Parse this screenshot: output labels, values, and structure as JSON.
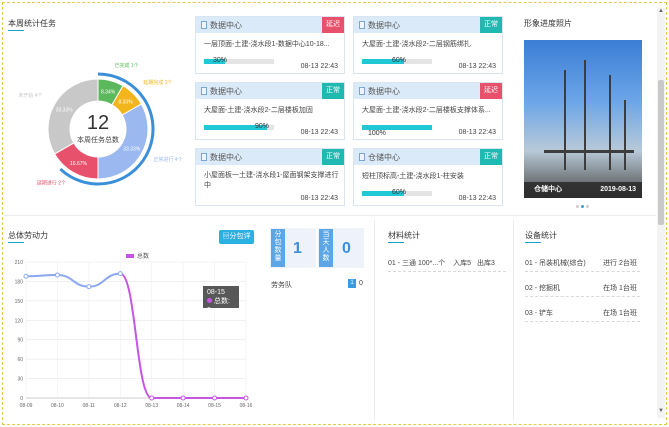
{
  "weekly": {
    "title": "本周统计任务",
    "total": "12",
    "total_label": "本周任务总数",
    "slices": [
      {
        "label": "已完成",
        "pct": "8.34%",
        "value": 8.34,
        "color": "#5cb85c"
      },
      {
        "label": "延期完成",
        "pct": "8.33%",
        "value": 8.33,
        "color": "#f3b51c"
      },
      {
        "label": "正常进行",
        "pct": "33.33%",
        "value": 33.33,
        "color": "#9bb8f0"
      },
      {
        "label": "延期进行",
        "pct": "16.67%",
        "value": 16.67,
        "color": "#e8516c"
      },
      {
        "label": "未开始",
        "pct": "33.33%",
        "value": 33.33,
        "color": "#c8c8c8"
      }
    ],
    "outer_labels": [
      "已完成 1个",
      "延期完成 1个",
      "正常进行 4个",
      "延期进行 2个",
      "未开始 4个"
    ],
    "inner_pcts": [
      "8.34%",
      "8.33%",
      "33.33%",
      "16.67%",
      "33.33%"
    ]
  },
  "cards": [
    {
      "title": "数据中心",
      "status": "延迟",
      "state": "late",
      "task": "一层顶面-土建-浇水段1-数据中心10-18...",
      "progress_label": "30%",
      "progress": 0.3,
      "date": "08-13 22:43"
    },
    {
      "title": "数据中心",
      "status": "正常",
      "state": "ok",
      "task": "大屋面-土建-浇水段2-二层钢筋绑扎",
      "progress_label": "60%",
      "progress": 0.6,
      "date": "08-13 22:43"
    },
    {
      "title": "数据中心",
      "status": "正常",
      "state": "ok",
      "task": "大屋面-土建-浇水段2-二层楼板加固",
      "progress_label": "90%",
      "progress": 0.9,
      "date": "08-13 22:43"
    },
    {
      "title": "数据中心",
      "status": "延迟",
      "state": "late",
      "task": "大屋面-土建-浇水段2-二层楼板支撑体系...",
      "progress_label": "100%",
      "progress": 1.0,
      "date": "08-13 22:43"
    },
    {
      "title": "数据中心",
      "status": "正常",
      "state": "ok",
      "task": "小屋面板一土建-浇水段1-屋面钢架支撑进行中",
      "progress_label": "",
      "progress": 0.0,
      "date": "08-13 22:43"
    },
    {
      "title": "仓储中心",
      "status": "正常",
      "state": "ok",
      "task": "短柱顶标高-土建-浇水段1-柱安装",
      "progress_label": "60%",
      "progress": 0.6,
      "date": "08-13 22:43"
    }
  ],
  "photo": {
    "title": "形象进度照片",
    "caption_left": "仓储中心",
    "caption_right": "2019-08-13"
  },
  "labor": {
    "title": "总体劳动力",
    "detail_btn": "分包详",
    "legend": "总数",
    "tooltip_date": "08-15",
    "tooltip_value": "总数: 0"
  },
  "chart_data": {
    "type": "line",
    "x": [
      "08-09",
      "08-10",
      "08-11",
      "08-12",
      "08-13",
      "08-14",
      "08-15",
      "08-16"
    ],
    "series": [
      {
        "name": "总数",
        "values": [
          188,
          190,
          172,
          192,
          0,
          0,
          0,
          0
        ]
      }
    ],
    "ylim": [
      0,
      210
    ],
    "yticks": [
      0,
      30,
      60,
      90,
      120,
      150,
      180,
      210
    ],
    "grid": true,
    "legend": "top"
  },
  "stats": {
    "sub_label": "分包数量",
    "sub_value": "1",
    "workers_label": "当天人数",
    "workers_value": "0",
    "team_label": "劳务队",
    "team_badge": "1",
    "team_count": "0"
  },
  "materials": {
    "title": "材料统计",
    "row": "01 - 三通 100*...个",
    "in": "入库5",
    "out": "出库3"
  },
  "equipment": {
    "title": "设备统计",
    "rows": [
      {
        "name": "01 - 吊装机械(综合)",
        "status": "进行 2台班"
      },
      {
        "name": "02 - 挖掘机",
        "status": "在场 1台班"
      },
      {
        "name": "03 - 铲车",
        "status": "在场 1台班"
      }
    ]
  }
}
